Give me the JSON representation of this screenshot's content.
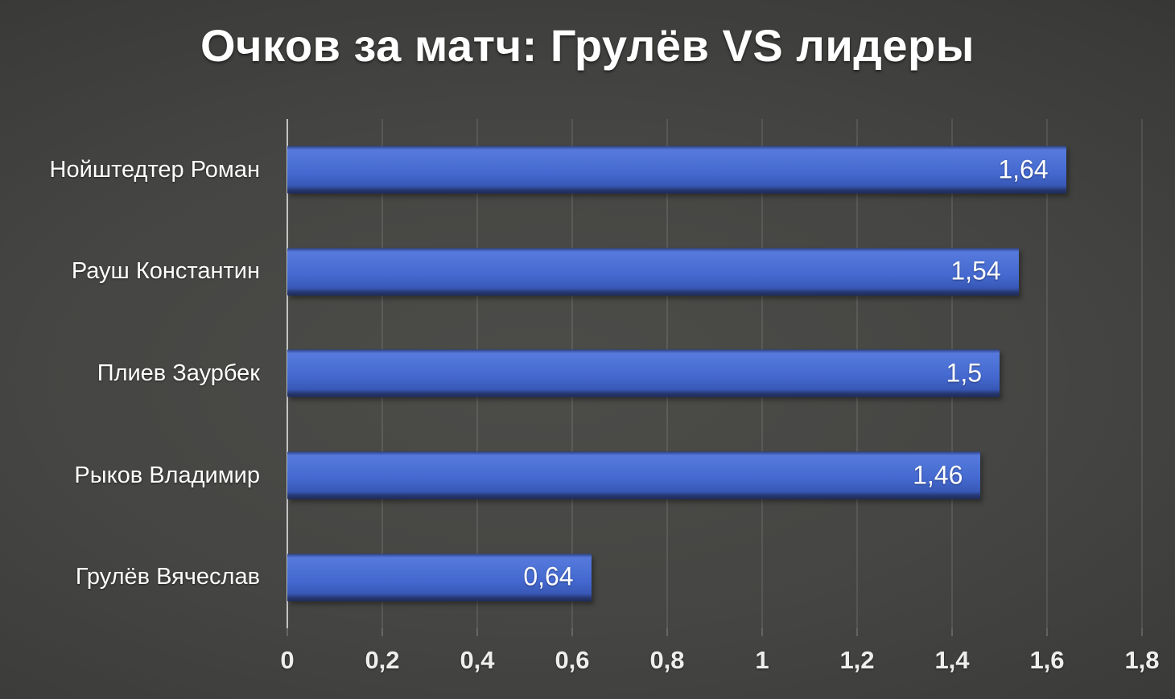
{
  "chart_data": {
    "type": "bar",
    "orientation": "horizontal",
    "title": "Очков за матч: Грулёв VS лидеры",
    "categories": [
      "Нойштедтер Роман",
      "Рауш Константин",
      "Плиев Заурбек",
      "Рыков Владимир",
      "Грулёв Вячеслав"
    ],
    "values": [
      1.64,
      1.54,
      1.5,
      1.46,
      0.64
    ],
    "value_labels": [
      "1,64",
      "1,54",
      "1,5",
      "1,46",
      "0,64"
    ],
    "value_label_position": "inside-end",
    "xlabel": "",
    "ylabel": "",
    "xlim": [
      0,
      1.8
    ],
    "x_ticks": [
      0,
      0.2,
      0.4,
      0.6,
      0.8,
      1,
      1.2,
      1.4,
      1.6,
      1.8
    ],
    "x_tick_labels": [
      "0",
      "0,2",
      "0,4",
      "0,6",
      "0,8",
      "1",
      "1,2",
      "1,4",
      "1,6",
      "1,8"
    ],
    "grid": true,
    "legend": false,
    "colors": {
      "background_center": "#4c4c49",
      "background_edge": "#262626",
      "bar_top": "#5679dd",
      "bar_mid": "#4468cf",
      "bar_bottom": "#1d2c5e",
      "gridline": "#c8c8c8",
      "axis_line": "#d9d9d9",
      "text": "#ffffff"
    }
  }
}
